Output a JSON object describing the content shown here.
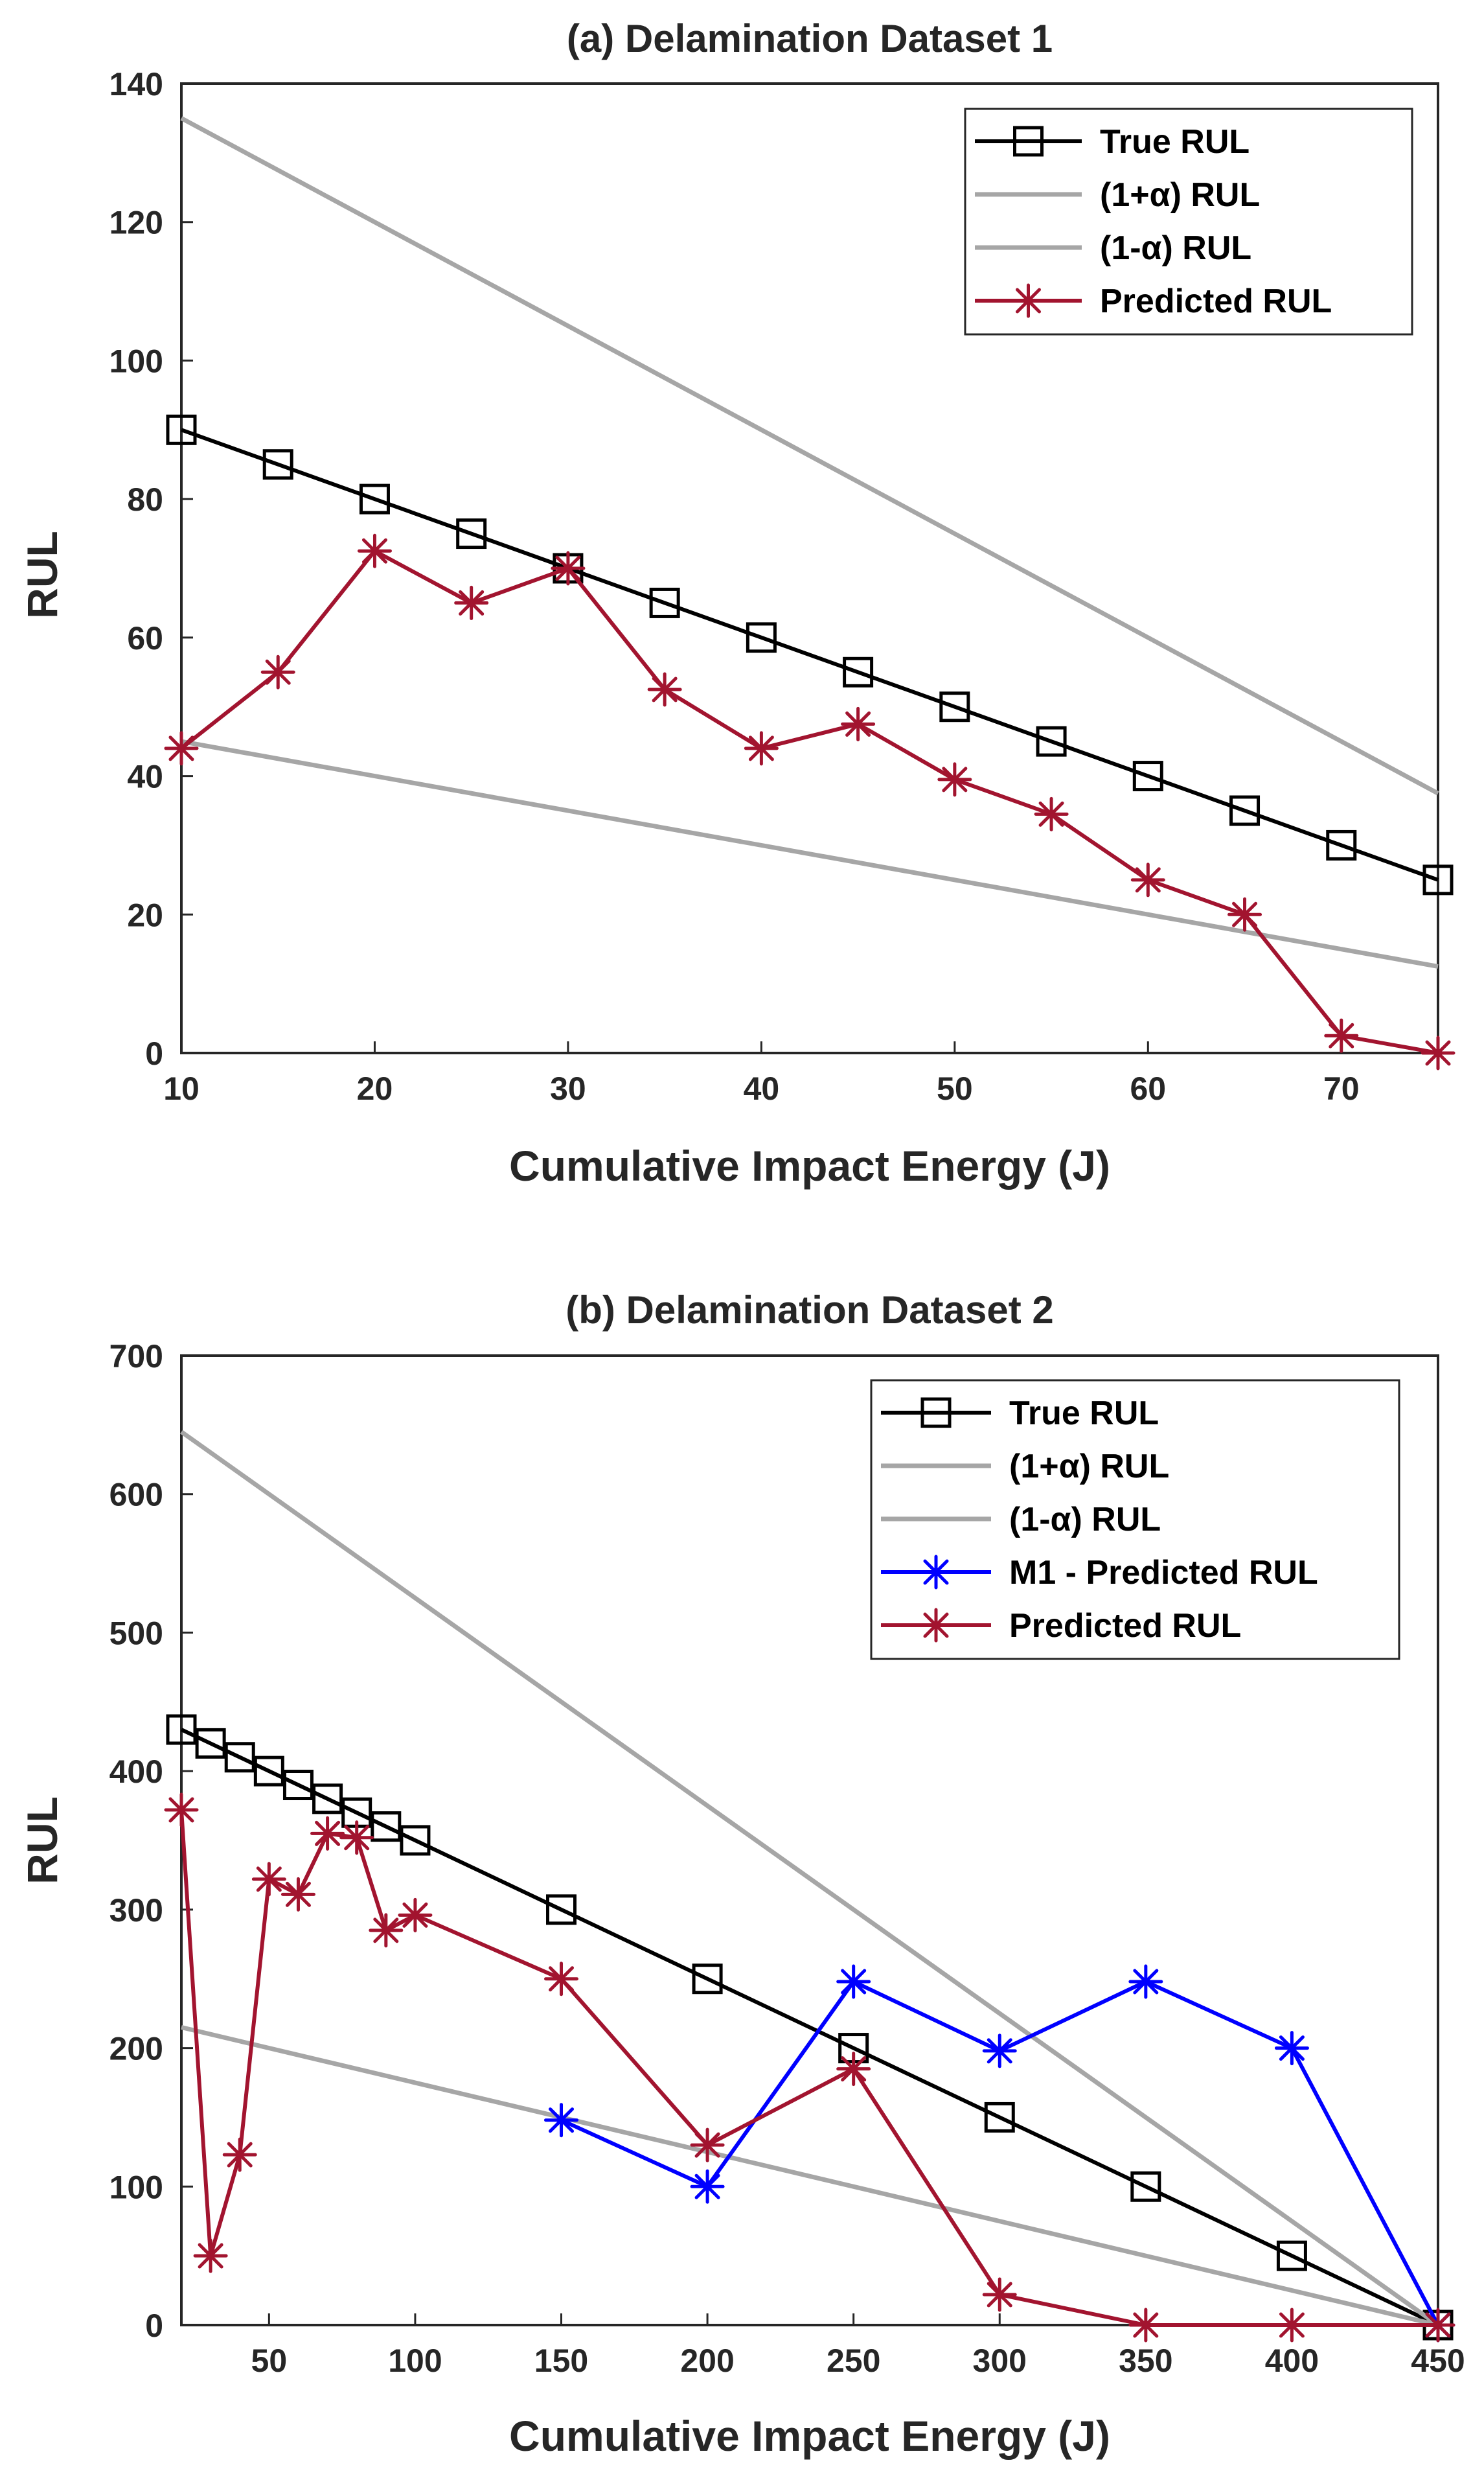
{
  "colors": {
    "true": "#000000",
    "bound": "#a6a6a6",
    "predicted": "#a2142f",
    "m1": "#0000ff",
    "axis": "#262626"
  },
  "chart_data": [
    {
      "type": "line",
      "title": "(a) Delamination Dataset 1",
      "xlabel": "Cumulative Impact Energy (J)",
      "ylabel": "RUL",
      "xlim": [
        10,
        75
      ],
      "ylim": [
        0,
        140
      ],
      "xticks": [
        10,
        20,
        30,
        40,
        50,
        60,
        70
      ],
      "xtick_labels": [
        "10",
        "20",
        "30",
        "40",
        "50",
        "60",
        "70"
      ],
      "yticks": [
        0,
        20,
        40,
        60,
        80,
        100,
        120,
        140
      ],
      "ytick_labels": [
        "0",
        "20",
        "40",
        "60",
        "80",
        "100",
        "120",
        "140"
      ],
      "legend_position": "top-right",
      "series": [
        {
          "name": "True RUL",
          "color": "#000000",
          "marker": "square",
          "x": [
            10,
            15,
            20,
            25,
            30,
            35,
            40,
            45,
            50,
            55,
            60,
            65,
            70,
            75
          ],
          "y": [
            90,
            85,
            80,
            75,
            70,
            65,
            60,
            55,
            50,
            45,
            40,
            35,
            30,
            25
          ]
        },
        {
          "name": "(1+α) RUL",
          "color": "#a6a6a6",
          "marker": "none",
          "x": [
            10,
            75
          ],
          "y": [
            135,
            37.5
          ]
        },
        {
          "name": "(1-α) RUL",
          "color": "#a6a6a6",
          "marker": "none",
          "x": [
            10,
            75
          ],
          "y": [
            45,
            12.5
          ]
        },
        {
          "name": "Predicted RUL",
          "color": "#a2142f",
          "marker": "asterisk",
          "x": [
            10,
            15,
            20,
            25,
            30,
            35,
            40,
            45,
            50,
            55,
            60,
            65,
            70,
            75
          ],
          "y": [
            44,
            55,
            72.5,
            65,
            70,
            52.5,
            44,
            47.5,
            39.5,
            34.5,
            25,
            20,
            2.5,
            0
          ]
        }
      ]
    },
    {
      "type": "line",
      "title": "(b) Delamination Dataset 2",
      "xlabel": "Cumulative Impact Energy (J)",
      "ylabel": "RUL",
      "xlim": [
        20,
        450
      ],
      "ylim": [
        0,
        700
      ],
      "xticks": [
        50,
        100,
        150,
        200,
        250,
        300,
        350,
        400,
        450
      ],
      "xtick_labels": [
        "50",
        "100",
        "150",
        "200",
        "250",
        "300",
        "350",
        "400",
        "450"
      ],
      "yticks": [
        0,
        100,
        200,
        300,
        400,
        500,
        600,
        700
      ],
      "ytick_labels": [
        "0",
        "100",
        "200",
        "300",
        "400",
        "500",
        "600",
        "700"
      ],
      "legend_position": "top-right",
      "series": [
        {
          "name": "True RUL",
          "color": "#000000",
          "marker": "square",
          "x": [
            20,
            30,
            40,
            50,
            60,
            70,
            80,
            90,
            100,
            150,
            200,
            250,
            300,
            350,
            400,
            450
          ],
          "y": [
            430,
            420,
            410,
            400,
            390,
            380,
            370,
            360,
            350,
            300,
            250,
            200,
            150,
            100,
            50,
            0
          ]
        },
        {
          "name": "(1+α) RUL",
          "color": "#a6a6a6",
          "marker": "none",
          "x": [
            20,
            450
          ],
          "y": [
            645,
            0
          ]
        },
        {
          "name": "(1-α) RUL",
          "color": "#a6a6a6",
          "marker": "none",
          "x": [
            20,
            450
          ],
          "y": [
            215,
            0
          ]
        },
        {
          "name": "M1 - Predicted RUL",
          "color": "#0000ff",
          "marker": "asterisk",
          "x": [
            150,
            200,
            250,
            300,
            350,
            400,
            450
          ],
          "y": [
            148,
            100,
            248,
            198,
            248,
            200,
            0
          ]
        },
        {
          "name": "Predicted RUL",
          "color": "#a2142f",
          "marker": "asterisk",
          "x": [
            20,
            30,
            40,
            50,
            60,
            70,
            80,
            90,
            100,
            150,
            200,
            250,
            300,
            350,
            400,
            450
          ],
          "y": [
            372,
            50,
            123,
            322,
            311,
            355,
            352,
            285,
            296,
            250,
            130,
            185,
            22,
            0,
            0,
            0
          ]
        }
      ]
    }
  ]
}
